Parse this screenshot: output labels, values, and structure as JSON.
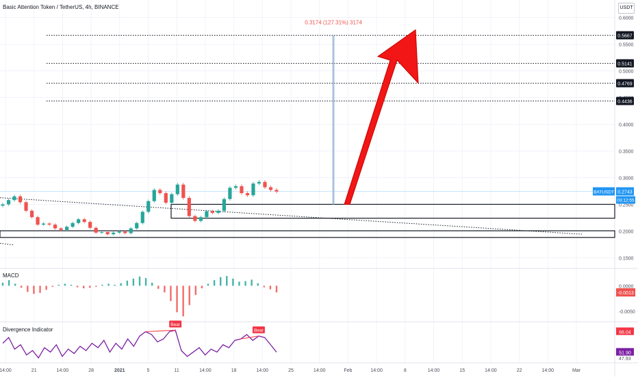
{
  "header": {
    "title": "Basic Attention Token / TetherUS, 4h, BINANCE",
    "currency": "USDT"
  },
  "main_pane": {
    "y_ticks": [
      "0.6000",
      "0.5500",
      "0.5000",
      "0.4500",
      "0.4000",
      "0.3500",
      "0.3000",
      "0.2500",
      "0.2000",
      "0.1500"
    ],
    "y_tick_values": [
      0.6,
      0.55,
      0.5,
      0.45,
      0.4,
      0.35,
      0.3,
      0.25,
      0.2,
      0.15
    ],
    "level_labels": [
      "0.5667",
      "0.5141",
      "0.4769",
      "0.4436"
    ],
    "level_values": [
      0.5667,
      0.5141,
      0.4769,
      0.4436
    ],
    "current_symbol": "BATUSDT",
    "current_price": "0.2743",
    "current_value": 0.2743,
    "countdown": "03:12:55",
    "measure_text": "0.3174 (127.31%) 3174",
    "colors": {
      "up": "#26a69a",
      "down": "#ef5350",
      "arrow": "#f21616",
      "measure": "#9ab8d8",
      "current": "#2196f3"
    }
  },
  "macd_pane": {
    "label": "MACD",
    "y_ticks": [
      "0.0000",
      "-0.0050"
    ],
    "y_tick_values": [
      0.0,
      -0.005
    ],
    "current_label": "-0.0013",
    "current_value": -0.0013
  },
  "div_pane": {
    "label": "Divergence Indicator",
    "y_ticks": [
      "66.04",
      "47.93"
    ],
    "y_tick_values": [
      66.04,
      47.93
    ],
    "current_labels": [
      "66.04",
      "51.90"
    ],
    "current_values": [
      66.04,
      51.9
    ],
    "bear_labels": [
      "Bear",
      "Bear"
    ],
    "colors": {
      "line": "#7b1fa2",
      "bear": "#f23645"
    }
  },
  "x_axis": {
    "labels": [
      "14:00",
      "21",
      "14:00",
      "28",
      "2021",
      "5",
      "11",
      "14:00",
      "18",
      "14:00",
      "25",
      "14:00",
      "Feb",
      "14:00",
      "8",
      "14:00",
      "15",
      "14:00",
      "22",
      "14:00",
      "Mar"
    ]
  },
  "chart_data": [
    {
      "type": "line",
      "title": "Basic Attention Token / TetherUS, 4h, BINANCE",
      "ylabel": "USDT",
      "ylim": [
        0.13,
        0.62
      ],
      "series": [
        {
          "name": "BATUSDT",
          "values": [
            0.25,
            0.258,
            0.265,
            0.254,
            0.238,
            0.226,
            0.212,
            0.214,
            0.212,
            0.205,
            0.202,
            0.208,
            0.215,
            0.222,
            0.217,
            0.206,
            0.197,
            0.198,
            0.194,
            0.197,
            0.199,
            0.196,
            0.205,
            0.215,
            0.236,
            0.256,
            0.277,
            0.271,
            0.253,
            0.269,
            0.287,
            0.262,
            0.228,
            0.219,
            0.226,
            0.237,
            0.234,
            0.238,
            0.26,
            0.281,
            0.284,
            0.271,
            0.267,
            0.289,
            0.292,
            0.282,
            0.277,
            0.274
          ]
        }
      ],
      "levels": [
        0.5667,
        0.5141,
        0.4769,
        0.4436
      ],
      "projection": {
        "delta": 0.3174,
        "percent": 127.31
      }
    },
    {
      "type": "bar",
      "title": "MACD",
      "ylim": [
        -0.0068,
        0.0026
      ],
      "values": [
        0.0006,
        0.0011,
        0.0004,
        -0.0004,
        -0.0012,
        -0.0016,
        -0.0014,
        -0.0008,
        -0.0002,
        0.0002,
        0.0004,
        0.0002,
        -0.0003,
        -0.0005,
        -0.0004,
        -0.0002,
        0.0002,
        0.0004,
        0.0002,
        0.0005,
        0.001,
        0.0014,
        0.0018,
        0.0015,
        0.0006,
        -0.0006,
        -0.0013,
        -0.003,
        -0.0052,
        -0.006,
        -0.0038,
        -0.0018,
        -0.0005,
        0.0004,
        0.0011,
        0.0017,
        0.0019,
        0.0014,
        0.0008,
        0.0009,
        0.0012,
        0.0005,
        -0.0003,
        -0.0007,
        -0.0013
      ]
    },
    {
      "type": "line",
      "title": "Divergence Indicator",
      "ylim": [
        45.5,
        69
      ],
      "series": [
        {
          "name": "Divergence Indicator",
          "values": [
            58,
            62,
            54,
            57,
            50,
            53,
            48,
            55,
            52,
            57,
            49,
            54,
            51,
            56,
            53,
            58,
            55,
            60,
            52,
            58,
            54,
            61,
            56,
            63,
            66,
            64,
            59,
            61,
            66,
            67,
            53,
            49,
            52,
            55,
            50,
            54,
            52,
            57,
            55,
            60,
            61,
            64,
            60,
            63,
            62,
            57,
            51.9
          ]
        }
      ]
    }
  ]
}
